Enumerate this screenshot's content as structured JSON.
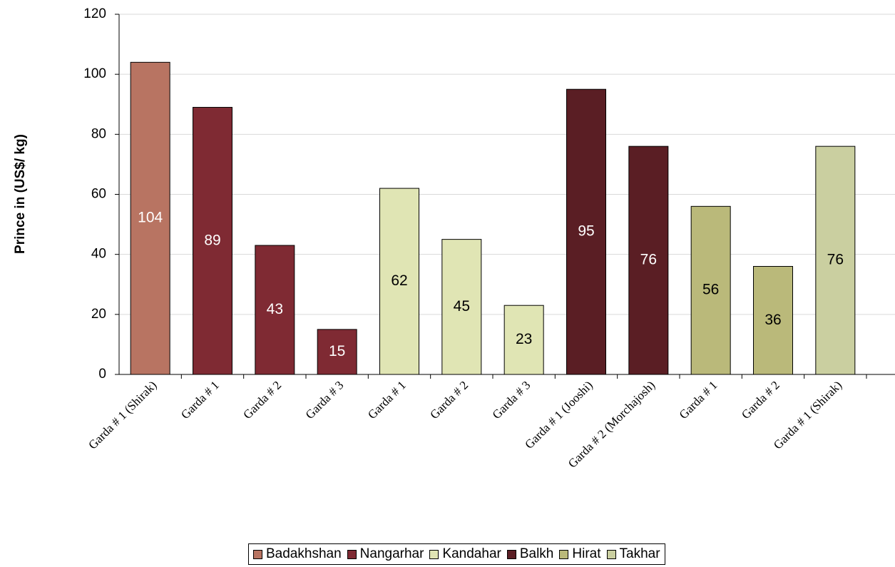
{
  "chart_data": {
    "type": "bar",
    "title": "",
    "xlabel": "",
    "ylabel": "Prince in (US$/ kg)",
    "ylim": [
      0,
      120
    ],
    "yticks": [
      0,
      20,
      40,
      60,
      80,
      100,
      120
    ],
    "grid": true,
    "legend_position": "bottom",
    "categories": [
      "Garda # 1 (Shirak)",
      "Garda # 1",
      "Garda # 2",
      "Garda # 3",
      "Garda # 1",
      "Garda # 2",
      "Garda # 3",
      "Garda # 1 (Jooshi)",
      "Garda # 2 (Morchajosh)",
      "Garda # 1",
      "Garda # 2",
      "Garda # 1 (Shirak)"
    ],
    "values": [
      104,
      89,
      43,
      15,
      62,
      45,
      23,
      95,
      76,
      56,
      36,
      76
    ],
    "bar_series": [
      0,
      1,
      1,
      1,
      2,
      2,
      2,
      3,
      3,
      4,
      4,
      5
    ],
    "series": [
      {
        "name": "Badakhshan",
        "color": "#B87462",
        "label_color": "#ffffff"
      },
      {
        "name": "Nangarhar",
        "color": "#7F2A33",
        "label_color": "#ffffff"
      },
      {
        "name": "Kandahar",
        "color": "#E0E5B4",
        "label_color": "#000000"
      },
      {
        "name": "Balkh",
        "color": "#5A1E24",
        "label_color": "#ffffff"
      },
      {
        "name": "Hirat",
        "color": "#BAB97A",
        "label_color": "#000000"
      },
      {
        "name": "Takhar",
        "color": "#CACFA0",
        "label_color": "#000000"
      }
    ]
  }
}
